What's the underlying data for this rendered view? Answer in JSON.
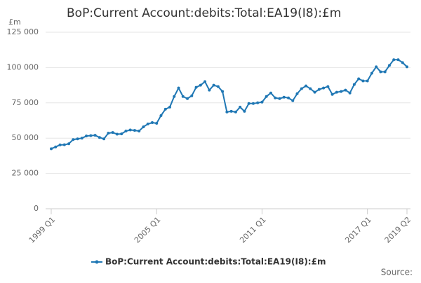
{
  "chart_data": {
    "type": "line",
    "title": "BoP:Current Account:debits:Total:EA19(I8):£m",
    "y_label": "£m",
    "source": "Source:",
    "categories": [
      "1999 Q1",
      null,
      null,
      null,
      null,
      null,
      null,
      null,
      null,
      null,
      null,
      null,
      null,
      null,
      null,
      null,
      null,
      null,
      null,
      null,
      null,
      null,
      null,
      null,
      "2005 Q1",
      null,
      null,
      null,
      null,
      null,
      null,
      null,
      null,
      null,
      null,
      null,
      null,
      null,
      null,
      null,
      null,
      null,
      null,
      null,
      null,
      null,
      null,
      null,
      "2011 Q1",
      null,
      null,
      null,
      null,
      null,
      null,
      null,
      null,
      null,
      null,
      null,
      null,
      null,
      null,
      null,
      null,
      null,
      null,
      null,
      null,
      null,
      null,
      null,
      "2017 Q1",
      null,
      null,
      null,
      null,
      null,
      null,
      null,
      null,
      "2019 Q2"
    ],
    "series": [
      {
        "name": "BoP:Current Account:debits:Total:EA19(I8):£m",
        "color": "#1f77b4",
        "values": [
          42500,
          43800,
          45200,
          45300,
          46000,
          49000,
          49500,
          50000,
          51500,
          51800,
          52000,
          50500,
          49500,
          53500,
          54000,
          52800,
          53000,
          55000,
          55800,
          55500,
          55000,
          58000,
          60000,
          61000,
          60500,
          66000,
          70500,
          72000,
          79500,
          85500,
          79500,
          78000,
          80000,
          86000,
          87500,
          90000,
          84000,
          87500,
          86500,
          83000,
          68500,
          69000,
          68500,
          72000,
          69000,
          74500,
          74500,
          75000,
          75500,
          79500,
          82000,
          78500,
          78000,
          79000,
          78500,
          76500,
          81500,
          85000,
          87000,
          85000,
          82500,
          84500,
          85500,
          86500,
          81000,
          82500,
          83000,
          84000,
          82000,
          88000,
          92000,
          90500,
          90500,
          96000,
          100500,
          97000,
          97000,
          101500,
          105500,
          105500,
          103500,
          100500
        ]
      }
    ],
    "ylim": [
      0,
      125000
    ],
    "yticks": [
      0,
      {
        "value": 25000,
        "label": "25 000"
      },
      {
        "value": 50000,
        "label": "50 000"
      },
      {
        "value": 75000,
        "label": "75 000"
      },
      {
        "value": 100000,
        "label": "100 000"
      },
      {
        "value": 125000,
        "label": "125 000"
      }
    ],
    "grid": true
  }
}
